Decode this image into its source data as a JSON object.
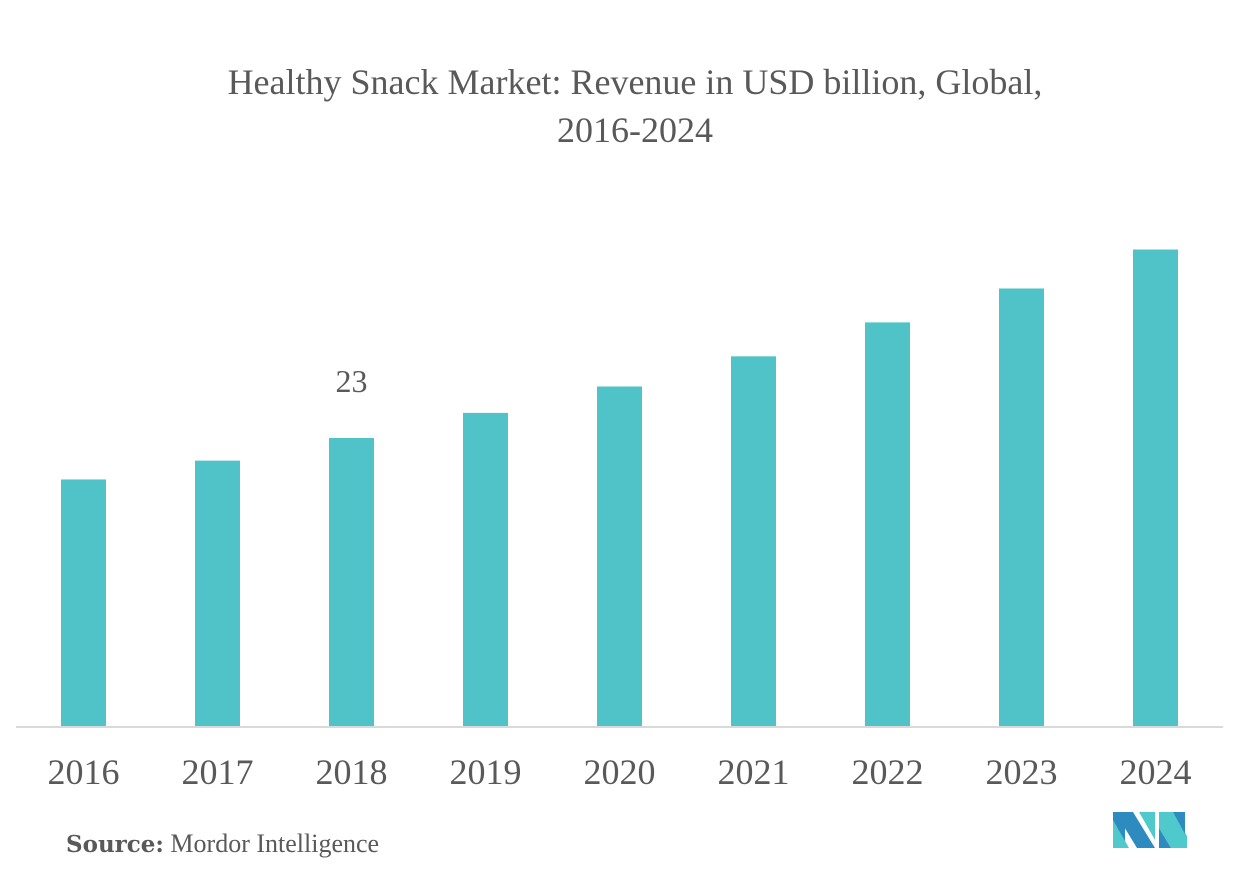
{
  "chart_data": {
    "type": "bar",
    "title": "Healthy Snack Market: Revenue in USD billion, Global,",
    "subtitle": "2016-2024",
    "categories": [
      "2016",
      "2017",
      "2018",
      "2019",
      "2020",
      "2021",
      "2022",
      "2023",
      "2024"
    ],
    "values": [
      19.7,
      21.2,
      23,
      25.0,
      27.1,
      29.5,
      32.2,
      34.9,
      38.0
    ],
    "data_labels": [
      null,
      null,
      "23",
      null,
      null,
      null,
      null,
      null,
      null
    ],
    "xlabel": "",
    "ylabel": "",
    "ylim": [
      0,
      40
    ],
    "grid": false,
    "bar_color": "#4fc3c8",
    "axis_color": "#d9d9d9"
  },
  "source": {
    "label": "Source:",
    "text": "Mordor Intelligence"
  },
  "logo": {
    "name": "mordor-intelligence-logo",
    "dark_color": "#2e8bc0",
    "light_color": "#4fc9cc"
  }
}
